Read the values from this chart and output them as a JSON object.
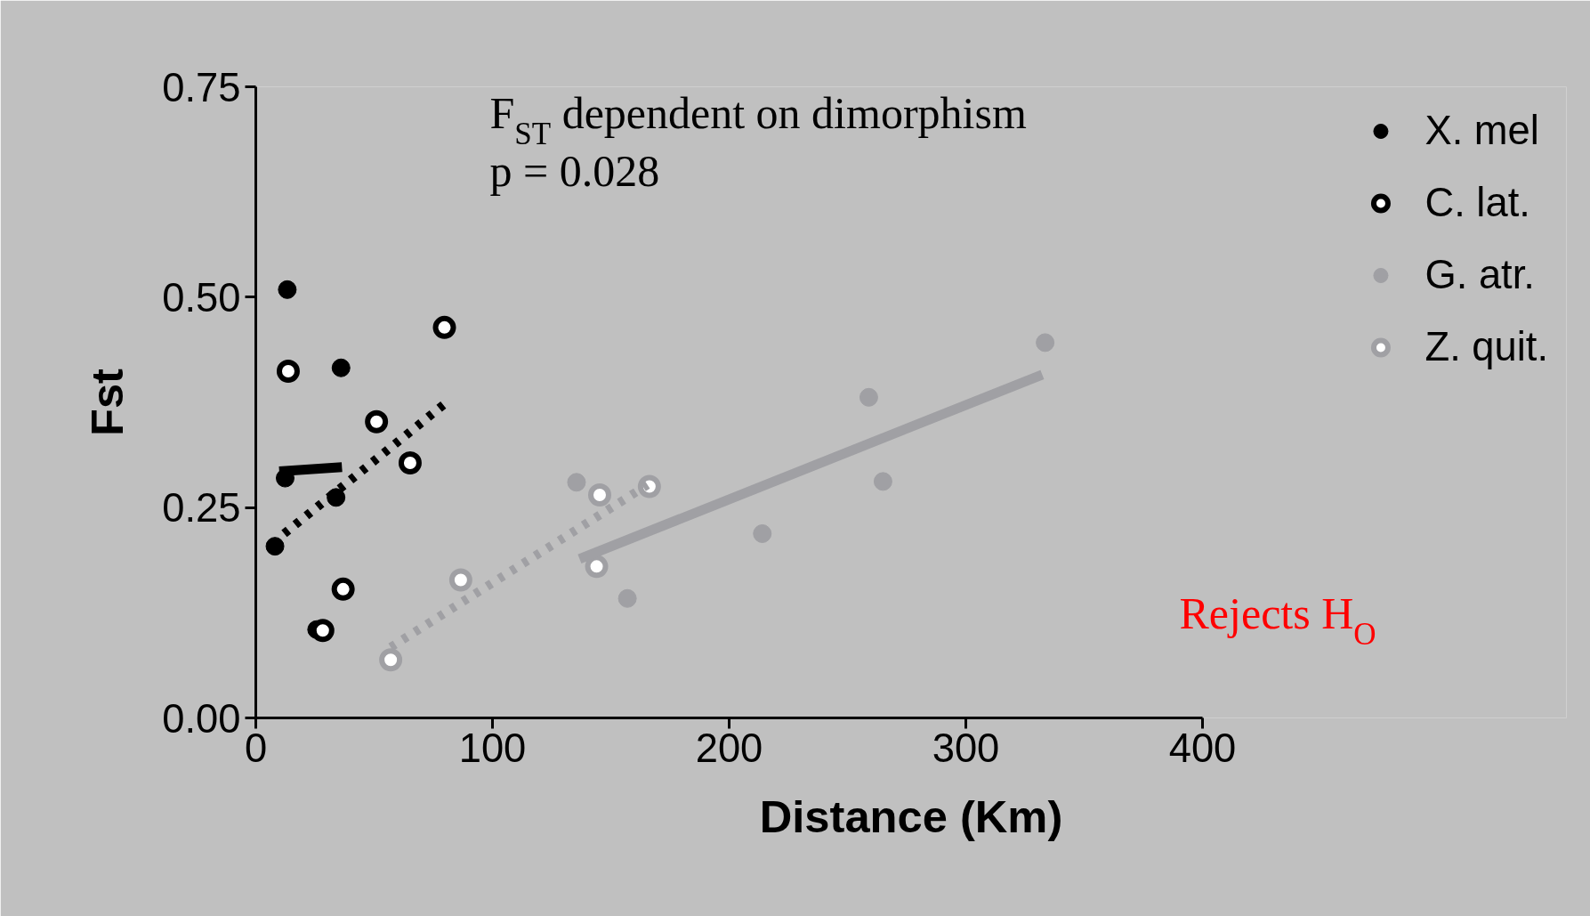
{
  "chart_data": {
    "type": "scatter",
    "xlabel": "Distance (Km)",
    "ylabel": "Fst",
    "annotations": [
      "F$_{ST}$ dependent on dimorphism",
      "p = 0.028",
      "Rejects H$_{O}$"
    ],
    "xlim": [
      0,
      400
    ],
    "ylim": [
      0,
      0.75
    ],
    "xticks": [
      0,
      100,
      200,
      300,
      400
    ],
    "yticks": [
      {
        "value": 0,
        "label": "0.00"
      },
      {
        "value": 0.25,
        "label": "0.25"
      },
      {
        "value": 0.5,
        "label": "0.50"
      },
      {
        "value": 0.75,
        "label": "0.75"
      }
    ],
    "grid": false,
    "legend": "top right",
    "marker": "circle",
    "series": [
      {
        "name": "X. mel",
        "color": "#000000",
        "x": [
          13.3,
          36,
          12.4,
          33.9,
          8.1,
          25.7
        ],
        "values": [
          0.509,
          0.416,
          0.285,
          0.262,
          0.204,
          0.105
        ]
      },
      {
        "name": "C. lat.",
        "color": "#000000",
        "x": [
          13.7,
          79.7,
          51,
          65.2,
          36.9,
          28.3
        ],
        "values": [
          0.412,
          0.464,
          0.352,
          0.303,
          0.153,
          0.104
        ]
      },
      {
        "name": "G. atr.",
        "color": "#a0a0a4",
        "x": [
          135.5,
          333.5,
          259,
          265,
          214,
          157
        ],
        "values": [
          0.28,
          0.446,
          0.381,
          0.281,
          0.219,
          0.142
        ]
      },
      {
        "name": "Z. quit.",
        "color": "#a0a0a4",
        "x": [
          57,
          86.6,
          145.3,
          166.3,
          144
        ],
        "values": [
          0.069,
          0.164,
          0.265,
          0.275,
          0.18
        ]
      },
      {
        "type": "line",
        "color": "#000000",
        "line_style": "solid",
        "marker": "none",
        "x": [
          9.9,
          36.4
        ],
        "values": [
          0.293,
          0.298
        ]
      },
      {
        "type": "line",
        "color": "#000000",
        "line_style": "dotted",
        "marker": "none",
        "x": [
          12,
          79.7
        ],
        "values": [
          0.219,
          0.373
        ]
      },
      {
        "type": "line",
        "color": "#a0a0a4",
        "line_style": "solid",
        "marker": "none",
        "x": [
          136.8,
          332.3
        ],
        "values": [
          0.189,
          0.408
        ]
      },
      {
        "type": "line",
        "color": "#a0a0a4",
        "line_style": "dotted",
        "marker": "none",
        "x": [
          57,
          165.5
        ],
        "values": [
          0.084,
          0.277
        ]
      }
    ]
  }
}
